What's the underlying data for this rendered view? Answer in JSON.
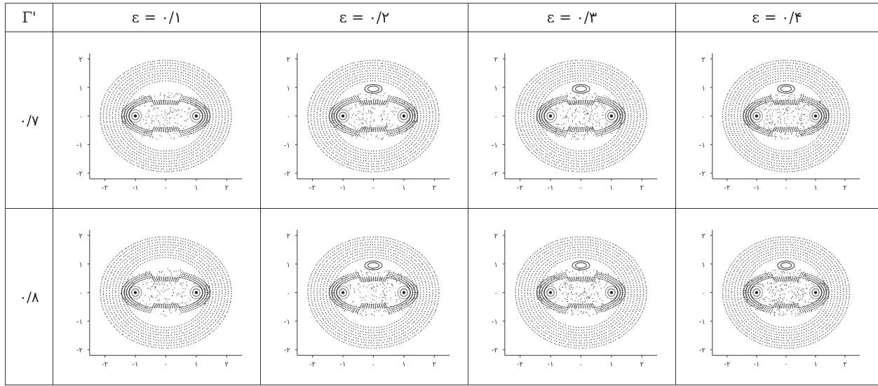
{
  "table": {
    "corner_label": "Γ'",
    "column_headers": [
      "ε = ۰/۱",
      "ε = ۰/۲",
      "ε = ۰/۳",
      "ε = ۰/۴"
    ],
    "row_labels": [
      "۰/۷",
      "۰/۸"
    ]
  },
  "plot_axes": {
    "x_ticks": [
      "-۲",
      "-۱",
      "۰",
      "۱",
      "۲"
    ],
    "y_ticks": [
      "۲",
      "۱",
      "۰",
      "-۱",
      "-۲"
    ],
    "x_range": [
      -2.5,
      2.5
    ],
    "y_range": [
      -2.2,
      2.2
    ]
  },
  "chart_data": [
    {
      "type": "scatter",
      "panel": "Γ'=۰/۷, ε=۰/۱",
      "fixed_points_x": [
        -1,
        1
      ],
      "fixed_points_y": [
        0,
        0
      ],
      "xlim": [
        -2.5,
        2.5
      ],
      "ylim": [
        -2.2,
        2.2
      ]
    },
    {
      "type": "scatter",
      "panel": "Γ'=۰/۷, ε=۰/۲",
      "fixed_points_x": [
        -1,
        1
      ],
      "fixed_points_y": [
        0,
        0
      ],
      "xlim": [
        -2.5,
        2.5
      ],
      "ylim": [
        -2.2,
        2.2
      ]
    },
    {
      "type": "scatter",
      "panel": "Γ'=۰/۷, ε=۰/۳",
      "fixed_points_x": [
        -1,
        1
      ],
      "fixed_points_y": [
        0,
        0
      ],
      "xlim": [
        -2.5,
        2.5
      ],
      "ylim": [
        -2.2,
        2.2
      ]
    },
    {
      "type": "scatter",
      "panel": "Γ'=۰/۷, ε=۰/۴",
      "fixed_points_x": [
        -1,
        1
      ],
      "fixed_points_y": [
        0,
        0
      ],
      "xlim": [
        -2.5,
        2.5
      ],
      "ylim": [
        -2.2,
        2.2
      ]
    },
    {
      "type": "scatter",
      "panel": "Γ'=۰/۸, ε=۰/۱",
      "fixed_points_x": [
        -1,
        1
      ],
      "fixed_points_y": [
        0,
        0
      ],
      "xlim": [
        -2.5,
        2.5
      ],
      "ylim": [
        -2.2,
        2.2
      ]
    },
    {
      "type": "scatter",
      "panel": "Γ'=۰/۸, ε=۰/۲",
      "fixed_points_x": [
        -1,
        1
      ],
      "fixed_points_y": [
        0,
        0
      ],
      "xlim": [
        -2.5,
        2.5
      ],
      "ylim": [
        -2.2,
        2.2
      ]
    },
    {
      "type": "scatter",
      "panel": "Γ'=۰/۸, ε=۰/۳",
      "fixed_points_x": [
        -1,
        1
      ],
      "fixed_points_y": [
        0,
        0
      ],
      "xlim": [
        -2.5,
        2.5
      ],
      "ylim": [
        -2.2,
        2.2
      ]
    },
    {
      "type": "scatter",
      "panel": "Γ'=۰/۸, ε=۰/۴",
      "fixed_points_x": [
        -1,
        1
      ],
      "fixed_points_y": [
        0,
        0
      ],
      "xlim": [
        -2.5,
        2.5
      ],
      "ylim": [
        -2.2,
        2.2
      ]
    }
  ]
}
